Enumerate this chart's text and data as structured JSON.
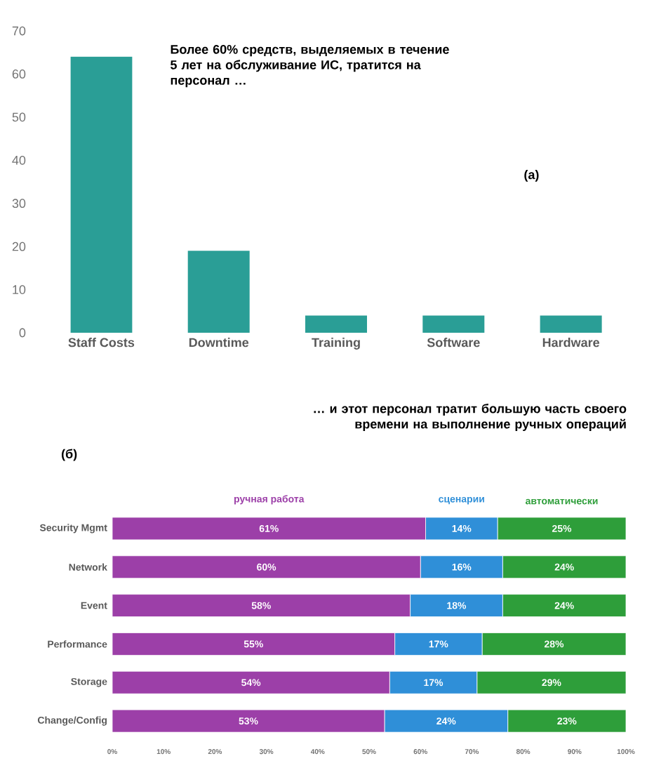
{
  "chart_data": [
    {
      "type": "bar",
      "categories": [
        "Staff Costs",
        "Downtime",
        "Training",
        "Software",
        "Hardware"
      ],
      "values": [
        64,
        19,
        4,
        4,
        4
      ],
      "color": "#2a9e96",
      "ylim": [
        0,
        70
      ],
      "yticks": [
        0,
        10,
        20,
        30,
        40,
        50,
        60,
        70
      ],
      "grid": false,
      "annotations": [
        "Более 60% средств, выделяемых в течение 5 лет на обслуживание ИС, тратится на персонал …",
        "(а)"
      ]
    },
    {
      "type": "bar",
      "orientation": "horizontal",
      "stacked": true,
      "title": "… и этот персонал тратит большую часть своего времени на выполнение ручных операций",
      "categories": [
        "Security Mgmt",
        "Network",
        "Event",
        "Performance",
        "Storage",
        "Change/Config"
      ],
      "series": [
        {
          "name": "ручная работа",
          "color": "#9c3fa8",
          "values": [
            61,
            60,
            58,
            55,
            54,
            53
          ],
          "value_labels": [
            "61%",
            "60%",
            "58%",
            "55%",
            "54%",
            "53%"
          ]
        },
        {
          "name": "сценарии",
          "color": "#2f8fd8",
          "values": [
            14,
            16,
            18,
            17,
            17,
            24
          ],
          "value_labels": [
            "14%",
            "16%",
            "18%",
            "17%",
            "17%",
            "24%"
          ]
        },
        {
          "name": "автоматически",
          "color": "#2e9e3a",
          "values": [
            25,
            24,
            24,
            28,
            29,
            23
          ],
          "value_labels": [
            "25%",
            "24%",
            "24%",
            "28%",
            "29%",
            "23%"
          ]
        }
      ],
      "xlim": [
        0,
        100
      ],
      "xticks": [
        {
          "value": 0,
          "label": "0%"
        },
        {
          "value": 10,
          "label": "10%"
        },
        {
          "value": 20,
          "label": "20%"
        },
        {
          "value": 30,
          "label": "30%"
        },
        {
          "value": 40,
          "label": "40%"
        },
        {
          "value": 50,
          "label": "50%"
        },
        {
          "value": 60,
          "label": "60%"
        },
        {
          "value": 70,
          "label": "70%"
        },
        {
          "value": 80,
          "label": "80%"
        },
        {
          "value": 90,
          "label": "90%"
        },
        {
          "value": 100,
          "label": "100%"
        }
      ],
      "grid": false,
      "annotations": [
        "(б)"
      ]
    }
  ]
}
